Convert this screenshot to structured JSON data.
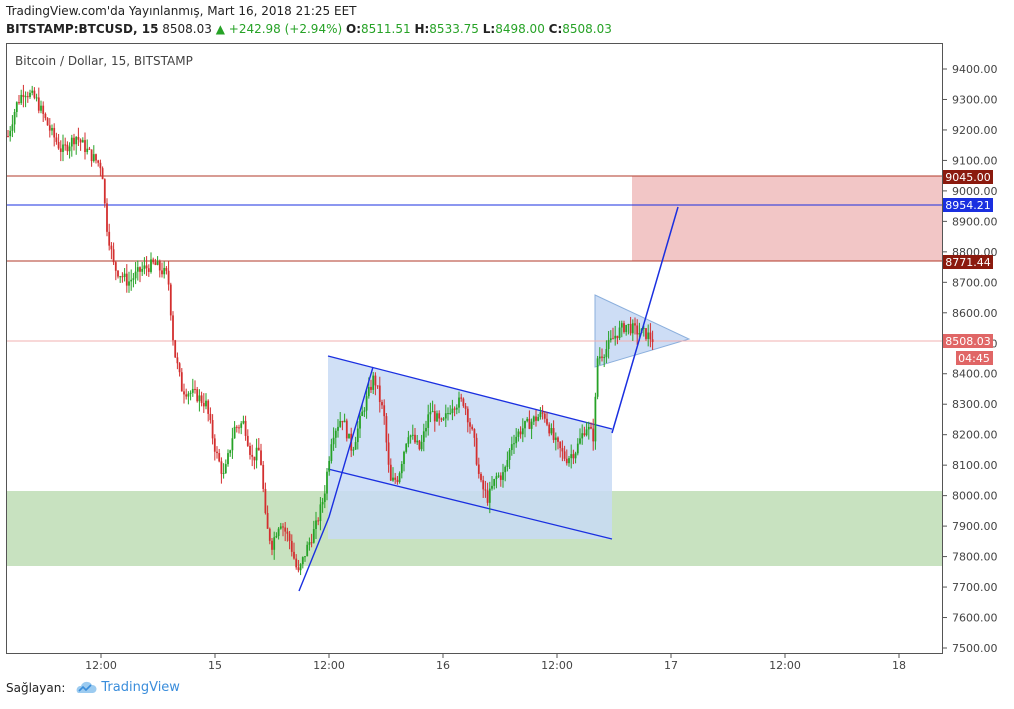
{
  "header": {
    "published": "TradingView.com'da Yayınlanmış, Mart 16, 2018 21:25 EET",
    "symbol": "BITSTAMP:BTCUSD, 15",
    "price": "8508.03",
    "change": "▲ +242.98 (+2.94%)",
    "o_label": "O:",
    "o_val": "8511.51",
    "h_label": "H:",
    "h_val": "8533.75",
    "l_label": "L:",
    "l_val": "8498.00",
    "c_label": "C:",
    "c_val": "8508.03"
  },
  "chart": {
    "title": "Bitcoin / Dollar, 15, BITSTAMP",
    "y_ticks": [
      "9400.00",
      "9300.00",
      "9200.00",
      "9100.00",
      "9000.00",
      "8900.00",
      "8800.00",
      "8700.00",
      "8600.00",
      "8500.00",
      "8400.00",
      "8300.00",
      "8200.00",
      "8100.00",
      "8000.00",
      "7900.00",
      "7800.00",
      "7700.00",
      "7600.00",
      "7500.00"
    ],
    "x_ticks": [
      "12:00",
      "15",
      "12:00",
      "16",
      "12:00",
      "17",
      "12:00",
      "18"
    ],
    "level_labels": {
      "top": "9045.00",
      "target": "8954.21",
      "bottom": "8771.44",
      "last": "8508.03",
      "countdown": "04:45"
    },
    "colors": {
      "up": "#26a226",
      "down": "#d32f2f",
      "resistance_zone": "#f2c6c6",
      "support_zone": "#c8e2c0",
      "channel_fill": "#c8daf5",
      "trend_line": "#1a2fe0",
      "level_line": "#b23a2a",
      "label_dark": "#8b1a0e",
      "label_blue": "#1a2fe0",
      "label_price": "#e06666"
    }
  },
  "footer": {
    "shared_by": "Sağlayan:",
    "brand": "TradingView"
  }
}
